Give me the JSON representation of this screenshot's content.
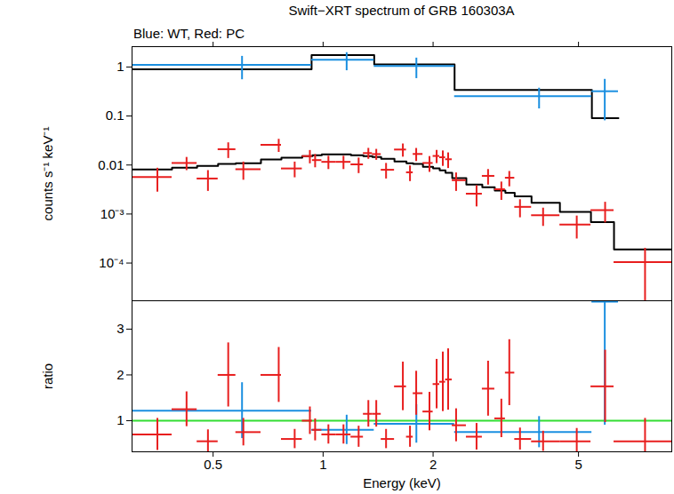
{
  "chart_data": [
    {
      "type": "scatter",
      "title": "Swift−XRT spectrum of GRB 160303A",
      "subtitle": "Blue: WT, Red: PC",
      "ylabel": "counts s⁻¹ keV⁻¹",
      "log": true,
      "tick_labels": "y",
      "xlim": [
        0.3,
        9
      ],
      "xticks": [
        0.5,
        1,
        2,
        5
      ],
      "ylim": [
        1.7e-05,
        2.6
      ],
      "yticks": [
        1,
        0.1,
        0.01,
        {
          "value": 0.001,
          "label": "10⁻³"
        },
        {
          "value": 0.0001,
          "label": "10⁻⁴"
        }
      ],
      "series": [
        {
          "name": "WT",
          "color": "#1a8fe0",
          "x": [
            0.6,
            1.16,
            1.8,
            3.9,
            5.9
          ],
          "bins": [
            0.3,
            0.93,
            1.38,
            2.29,
            5.44,
            6.43
          ],
          "values": [
            1.1,
            1.4,
            1.05,
            0.255,
            0.32
          ],
          "errors": [
            0.55,
            0.56,
            0.47,
            0.115,
            0.24
          ],
          "model": [
            0.9,
            1.75,
            1.13,
            0.34,
            0.09
          ]
        },
        {
          "name": "PC",
          "color": "#e81e1e",
          "x": [
            0.352,
            0.423,
            0.484,
            0.55,
            0.605,
            0.756,
            0.836,
            0.92,
            0.951,
            1.034,
            1.137,
            1.251,
            1.33,
            1.398,
            1.487,
            1.653,
            1.729,
            1.798,
            1.955,
            2.045,
            2.126,
            2.199,
            2.312,
            2.63,
            2.828,
            3.075,
            3.233,
            3.458,
            4.0,
            4.945,
            5.913,
            7.605
          ],
          "bins": [
            0.3,
            0.386,
            0.452,
            0.516,
            0.577,
            0.676,
            0.769,
            0.877,
            0.935,
            0.992,
            1.084,
            1.192,
            1.289,
            1.364,
            1.442,
            1.568,
            1.691,
            1.764,
            1.876,
            2.0,
            2.085,
            2.163,
            2.256,
            2.466,
            2.727,
            2.95,
            3.154,
            3.345,
            3.719,
            4.447,
            5.408,
            6.254,
            9.0
          ],
          "values": [
            0.0057,
            0.011,
            0.0053,
            0.021,
            0.0082,
            0.0258,
            0.0085,
            0.0152,
            0.0126,
            0.0116,
            0.0116,
            0.0103,
            0.0175,
            0.0167,
            0.008,
            0.0207,
            0.0071,
            0.0168,
            0.011,
            0.0153,
            0.0144,
            0.0131,
            0.0049,
            0.0026,
            0.006,
            0.0032,
            0.0055,
            0.0014,
            0.00094,
            0.00061,
            0.0012,
            0.000105
          ],
          "errors": [
            0.0029,
            0.0033,
            0.0024,
            0.0074,
            0.0033,
            0.0077,
            0.003,
            0.0046,
            0.0038,
            0.0035,
            0.0035,
            0.0036,
            0.0044,
            0.0042,
            0.0028,
            0.0062,
            0.0025,
            0.005,
            0.0039,
            0.0046,
            0.005,
            0.0046,
            0.002,
            0.0012,
            0.0021,
            0.0013,
            0.0019,
            0.00056,
            0.00038,
            0.0003,
            0.00054,
            9.5e-05
          ],
          "model": [
            0.0081,
            0.0088,
            0.0096,
            0.0105,
            0.0109,
            0.0129,
            0.0141,
            0.0152,
            0.0158,
            0.0165,
            0.0165,
            0.0158,
            0.0152,
            0.0145,
            0.0134,
            0.0118,
            0.0109,
            0.0105,
            0.0092,
            0.0085,
            0.0078,
            0.0069,
            0.0054,
            0.004,
            0.0035,
            0.003,
            0.0027,
            0.0023,
            0.0017,
            0.0011,
            0.00068,
            0.00019
          ]
        }
      ]
    },
    {
      "type": "scatter",
      "xlabel": "Energy (keV)",
      "ylabel": "ratio",
      "log": "x",
      "xlim": [
        0.3,
        9
      ],
      "xticks": [
        0.5,
        1,
        2,
        5
      ],
      "ylim": [
        0.32,
        3.62
      ],
      "yticks": [
        1,
        2,
        3
      ],
      "reference_line": {
        "value": 1,
        "color": "#33dd33"
      },
      "series": [
        {
          "name": "WT",
          "color": "#1a8fe0",
          "x": [
            0.6,
            1.16,
            1.8,
            3.9,
            5.9
          ],
          "bins": [
            0.3,
            0.93,
            1.38,
            2.29,
            5.44,
            6.43
          ],
          "values": [
            1.22,
            0.8,
            0.93,
            0.75,
            3.6
          ],
          "errors": [
            0.61,
            0.32,
            0.42,
            0.34,
            2.7
          ]
        },
        {
          "name": "PC",
          "color": "#e81e1e",
          "x": [
            0.352,
            0.423,
            0.484,
            0.55,
            0.605,
            0.756,
            0.836,
            0.92,
            0.951,
            1.034,
            1.137,
            1.251,
            1.33,
            1.398,
            1.487,
            1.653,
            1.729,
            1.798,
            1.955,
            2.045,
            2.126,
            2.199,
            2.312,
            2.63,
            2.828,
            3.075,
            3.233,
            3.458,
            4.0,
            4.945,
            5.913,
            7.605
          ],
          "bins": [
            0.3,
            0.386,
            0.452,
            0.516,
            0.577,
            0.676,
            0.769,
            0.877,
            0.935,
            0.992,
            1.084,
            1.192,
            1.289,
            1.364,
            1.442,
            1.568,
            1.691,
            1.764,
            1.876,
            2.0,
            2.085,
            2.163,
            2.256,
            2.466,
            2.727,
            2.95,
            3.154,
            3.345,
            3.719,
            4.447,
            5.408,
            6.254,
            9.0
          ],
          "values": [
            0.7,
            1.25,
            0.55,
            2.0,
            0.75,
            2.0,
            0.6,
            1.0,
            0.8,
            0.7,
            0.7,
            0.65,
            1.15,
            1.15,
            0.6,
            1.75,
            0.65,
            1.6,
            1.2,
            1.8,
            1.85,
            1.9,
            0.9,
            0.65,
            1.7,
            1.05,
            2.05,
            0.6,
            0.55,
            0.55,
            1.75,
            0.55
          ],
          "errors": [
            0.35,
            0.38,
            0.25,
            0.7,
            0.3,
            0.6,
            0.21,
            0.3,
            0.24,
            0.21,
            0.21,
            0.23,
            0.29,
            0.29,
            0.21,
            0.53,
            0.23,
            0.48,
            0.42,
            0.54,
            0.65,
            0.67,
            0.36,
            0.29,
            0.6,
            0.42,
            0.72,
            0.24,
            0.22,
            0.28,
            0.79,
            0.5
          ]
        }
      ]
    }
  ]
}
